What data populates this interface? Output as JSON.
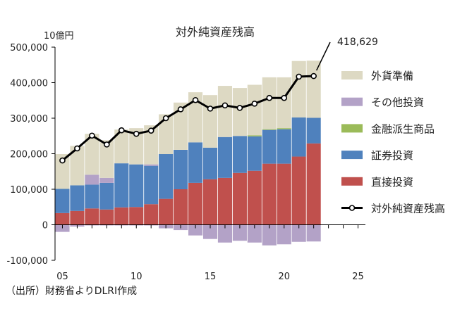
{
  "chart_data": {
    "type": "bar",
    "title": "対外純資産残高",
    "ylabel": "10億円",
    "ylim": [
      -100000,
      500000
    ],
    "yticks": [
      -100000,
      0,
      100000,
      200000,
      300000,
      400000,
      500000
    ],
    "ytick_labels": [
      "-100,000",
      "0",
      "100,000",
      "200,000",
      "300,000",
      "400,000",
      "500,000"
    ],
    "xlim": [
      4.5,
      25.5
    ],
    "xticks": [
      5,
      10,
      15,
      20,
      25
    ],
    "xtick_labels": [
      "05",
      "10",
      "15",
      "20",
      "25"
    ],
    "x": [
      5,
      6,
      7,
      8,
      9,
      10,
      11,
      12,
      13,
      14,
      15,
      16,
      17,
      18,
      19,
      20,
      21,
      22
    ],
    "stacks": [
      {
        "name": "直接投資",
        "color": "#c0504d",
        "side": "pos",
        "values": [
          33000,
          39000,
          46000,
          43000,
          49000,
          50000,
          58000,
          73000,
          100000,
          118000,
          128000,
          132000,
          146000,
          152000,
          172000,
          172000,
          192000,
          229000
        ]
      },
      {
        "name": "証券投資",
        "color": "#4f81bd",
        "side": "pos",
        "values": [
          68000,
          72000,
          67000,
          75000,
          124000,
          120000,
          108000,
          126000,
          111000,
          114000,
          89000,
          115000,
          104000,
          97000,
          95000,
          97000,
          110000,
          72000
        ]
      },
      {
        "name": "金融派生商品",
        "color": "#9bbb59",
        "side": "pos",
        "values": [
          0,
          0,
          0,
          0,
          0,
          0,
          0,
          0,
          0,
          0,
          0,
          0,
          0,
          3000,
          2000,
          3000,
          0,
          0
        ]
      },
      {
        "name": "その他投資",
        "color": "#b3a2c7",
        "side": "pos",
        "values": [
          0,
          0,
          28000,
          14000,
          0,
          0,
          4000,
          0,
          0,
          0,
          0,
          0,
          0,
          0,
          0,
          0,
          0,
          0
        ]
      },
      {
        "name": "外貨準備",
        "color": "#ddd9c3",
        "side": "pos",
        "values": [
          98000,
          111000,
          115000,
          106000,
          95000,
          102000,
          110000,
          112000,
          133000,
          141000,
          148000,
          144000,
          135000,
          142000,
          146000,
          143000,
          159000,
          161000
        ]
      },
      {
        "name": "その他投資",
        "color": "#b3a2c7",
        "side": "neg",
        "values": [
          -20000,
          -5000,
          -2000,
          -2000,
          -2000,
          -2000,
          -2000,
          -10000,
          -15000,
          -30000,
          -40000,
          -50000,
          -45000,
          -50000,
          -58000,
          -55000,
          -48000,
          -47000
        ]
      }
    ],
    "series": [
      {
        "name": "対外純資産残高",
        "color": "#000000",
        "values": [
          181000,
          215000,
          251000,
          226000,
          266000,
          256000,
          265000,
          300000,
          325000,
          351000,
          327000,
          336000,
          329000,
          341000,
          357000,
          357000,
          417000,
          418629
        ]
      }
    ],
    "annotation": "418,629",
    "legend": [
      {
        "label": "外貨準備",
        "color": "#ddd9c3",
        "kind": "box"
      },
      {
        "label": "その他投資",
        "color": "#b3a2c7",
        "kind": "box"
      },
      {
        "label": "金融派生商品",
        "color": "#9bbb59",
        "kind": "box"
      },
      {
        "label": "証券投資",
        "color": "#4f81bd",
        "kind": "box"
      },
      {
        "label": "直接投資",
        "color": "#c0504d",
        "kind": "box"
      },
      {
        "label": "対外純資産残高",
        "color": "#000000",
        "kind": "line"
      }
    ],
    "legend_position": "right"
  },
  "source": "（出所）財務省よりDLRI作成"
}
